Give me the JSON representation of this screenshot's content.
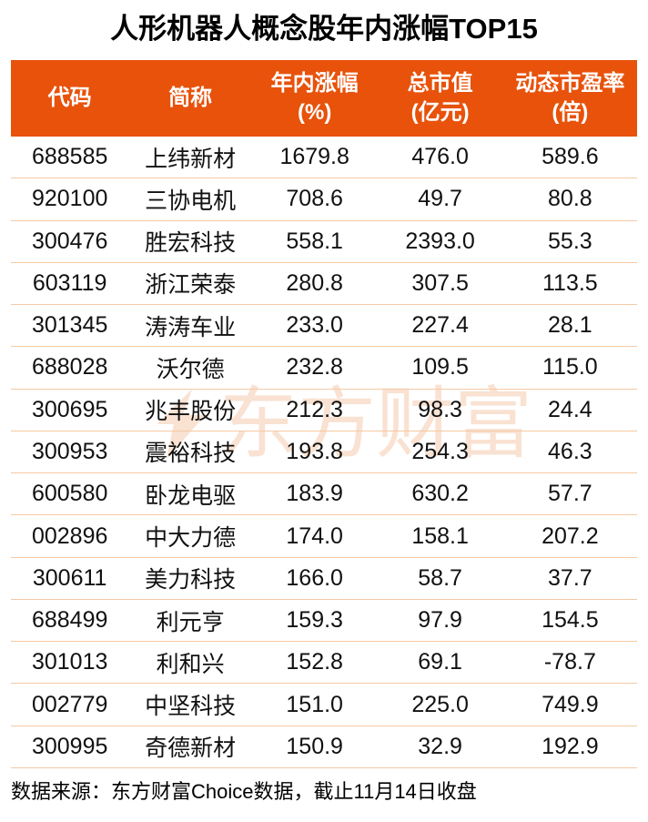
{
  "title": "人形机器人概念股年内涨幅TOP15",
  "watermark": {
    "icon": "eastmoney-logo",
    "text": "东方财富"
  },
  "table": {
    "columns": [
      {
        "line1": "代码",
        "line2": ""
      },
      {
        "line1": "简称",
        "line2": ""
      },
      {
        "line1": "年内涨幅",
        "line2": "(%)"
      },
      {
        "line1": "总市值",
        "line2": "(亿元)"
      },
      {
        "line1": "动态市盈率",
        "line2": "(倍)"
      }
    ]
  },
  "chart_data": {
    "type": "table",
    "title": "人形机器人概念股年内涨幅TOP15",
    "columns": [
      "代码",
      "简称",
      "年内涨幅(%)",
      "总市值(亿元)",
      "动态市盈率(倍)"
    ],
    "rows": [
      [
        "688585",
        "上纬新材",
        "1679.8",
        "476.0",
        "589.6"
      ],
      [
        "920100",
        "三协电机",
        "708.6",
        "49.7",
        "80.8"
      ],
      [
        "300476",
        "胜宏科技",
        "558.1",
        "2393.0",
        "55.3"
      ],
      [
        "603119",
        "浙江荣泰",
        "280.8",
        "307.5",
        "113.5"
      ],
      [
        "301345",
        "涛涛车业",
        "233.0",
        "227.4",
        "28.1"
      ],
      [
        "688028",
        "沃尔德",
        "232.8",
        "109.5",
        "115.0"
      ],
      [
        "300695",
        "兆丰股份",
        "212.3",
        "98.3",
        "24.4"
      ],
      [
        "300953",
        "震裕科技",
        "193.8",
        "254.3",
        "46.3"
      ],
      [
        "600580",
        "卧龙电驱",
        "183.9",
        "630.2",
        "57.7"
      ],
      [
        "002896",
        "中大力德",
        "174.0",
        "158.1",
        "207.2"
      ],
      [
        "300611",
        "美力科技",
        "166.0",
        "58.7",
        "37.7"
      ],
      [
        "688499",
        "利元亨",
        "159.3",
        "97.9",
        "154.5"
      ],
      [
        "301013",
        "利和兴",
        "152.8",
        "69.1",
        "-78.7"
      ],
      [
        "002779",
        "中坚科技",
        "151.0",
        "225.0",
        "749.9"
      ],
      [
        "300995",
        "奇德新材",
        "150.9",
        "32.9",
        "192.9"
      ]
    ]
  },
  "footer": {
    "source": "数据来源：东方财富Choice数据，截止11月14日收盘"
  },
  "colors": {
    "header_bg": "#E8520B",
    "header_text": "#FFFFFF",
    "row_divider": "#F5C9A4",
    "body_text": "#111111",
    "watermark": "#F9E2D2",
    "page_bg": "#FFFFFF"
  }
}
